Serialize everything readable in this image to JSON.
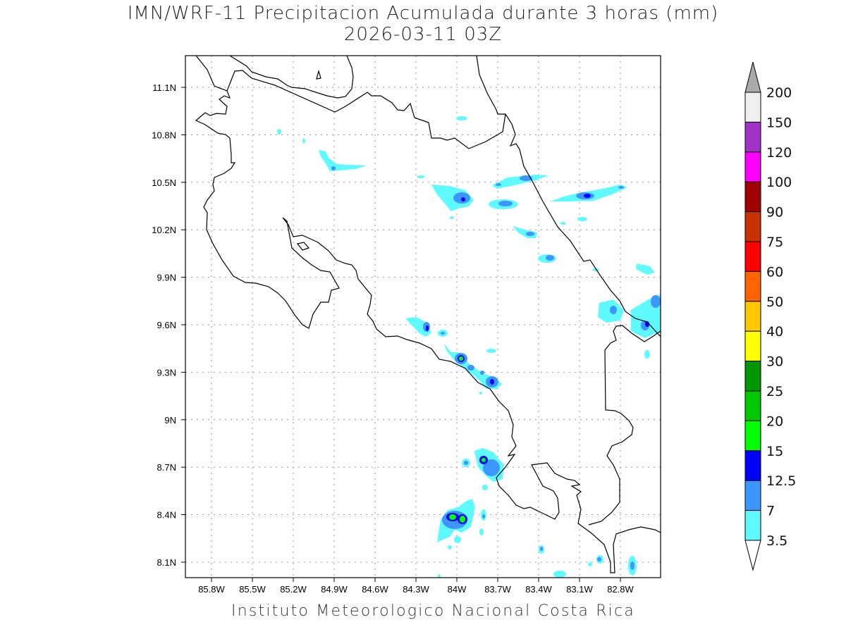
{
  "header": {
    "title": "IMN/WRF-11 Precipitacion Acumulada durante 3 horas (mm)",
    "subtitle": "2026-03-11 03Z"
  },
  "footer": "Instituto Meteorologico Nacional Costa Rica",
  "map": {
    "region": "Costa Rica",
    "lat_labels": [
      "11.1N",
      "10.8N",
      "10.5N",
      "10.2N",
      "9.9N",
      "9.6N",
      "9.3N",
      "9N",
      "8.7N",
      "8.4N",
      "8.1N"
    ],
    "lon_labels": [
      "85.8W",
      "85.5W",
      "85.2W",
      "84.9W",
      "84.6W",
      "84.3W",
      "84W",
      "83.7W",
      "83.4W",
      "83.1W",
      "82.8W"
    ]
  },
  "colorbar": {
    "unit": "mm",
    "labels": [
      "200",
      "150",
      "120",
      "100",
      "90",
      "75",
      "60",
      "50",
      "40",
      "30",
      "25",
      "20",
      "15",
      "12.5",
      "7",
      "3.5"
    ],
    "colors": [
      "#f0f0f0",
      "#a032c8",
      "#ff00ff",
      "#a00000",
      "#c83200",
      "#ff0000",
      "#ff6400",
      "#ffc800",
      "#ffff00",
      "#009600",
      "#00c800",
      "#00ff00",
      "#0000ff",
      "#3c96ff",
      "#5ffaff"
    ],
    "over_color": "#aaaaaa",
    "under_color": "#ffffff"
  }
}
